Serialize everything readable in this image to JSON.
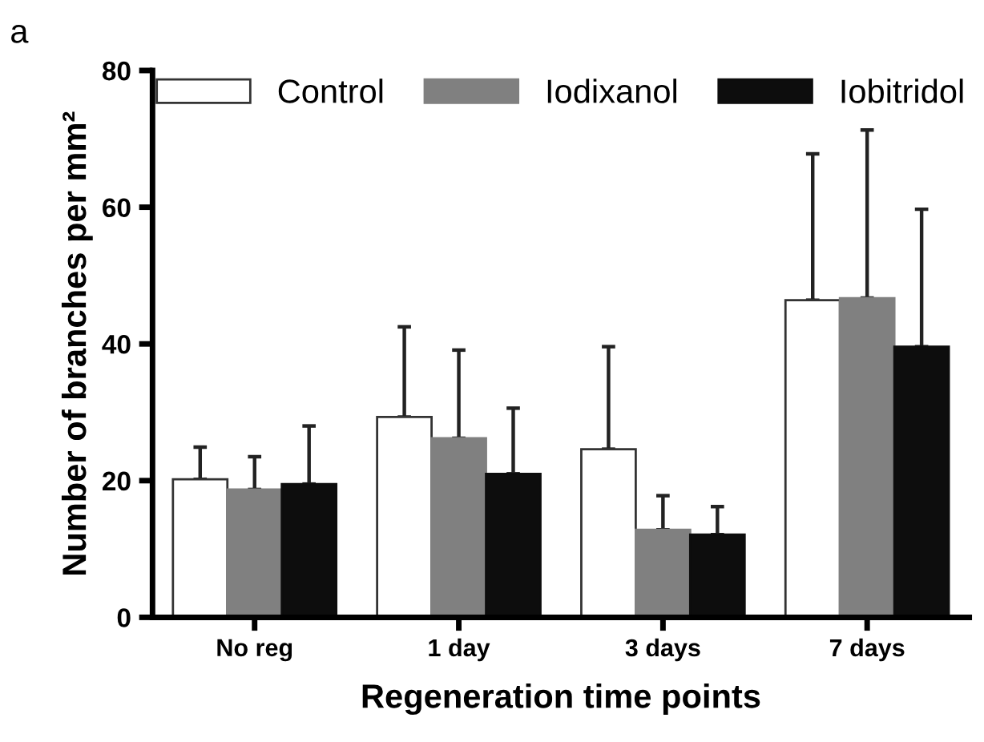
{
  "chart_data": {
    "type": "bar",
    "xlabel": "Regeneration time points",
    "ylabel": "Number of branches per mm²",
    "categories": [
      "No reg",
      "1 day",
      "3 days",
      "7 days"
    ],
    "series": [
      {
        "name": "Control",
        "color": "#ffffff",
        "values": [
          20.2,
          29.3,
          24.6,
          46.4
        ],
        "errors": [
          [
            20.2,
            24.9
          ],
          [
            29.3,
            42.5
          ],
          [
            24.6,
            39.6
          ],
          [
            46.4,
            67.8
          ]
        ]
      },
      {
        "name": "Iodixanol",
        "color": "#808080",
        "values": [
          18.7,
          26.2,
          12.8,
          46.7
        ],
        "errors": [
          [
            18.7,
            23.5
          ],
          [
            26.2,
            39.1
          ],
          [
            12.8,
            17.8
          ],
          [
            46.7,
            71.3
          ]
        ]
      },
      {
        "name": "Iobitridol",
        "color": "#0d0d0d",
        "values": [
          19.5,
          21.0,
          12.1,
          39.6
        ],
        "errors": [
          [
            19.5,
            28.0
          ],
          [
            21.0,
            30.6
          ],
          [
            12.1,
            16.2
          ],
          [
            39.6,
            59.7
          ]
        ]
      }
    ],
    "ylim": [
      0,
      80
    ],
    "yticks": [
      0,
      20,
      40,
      60,
      80
    ],
    "grid": false,
    "legend": "top",
    "annotations": [
      "a"
    ]
  }
}
